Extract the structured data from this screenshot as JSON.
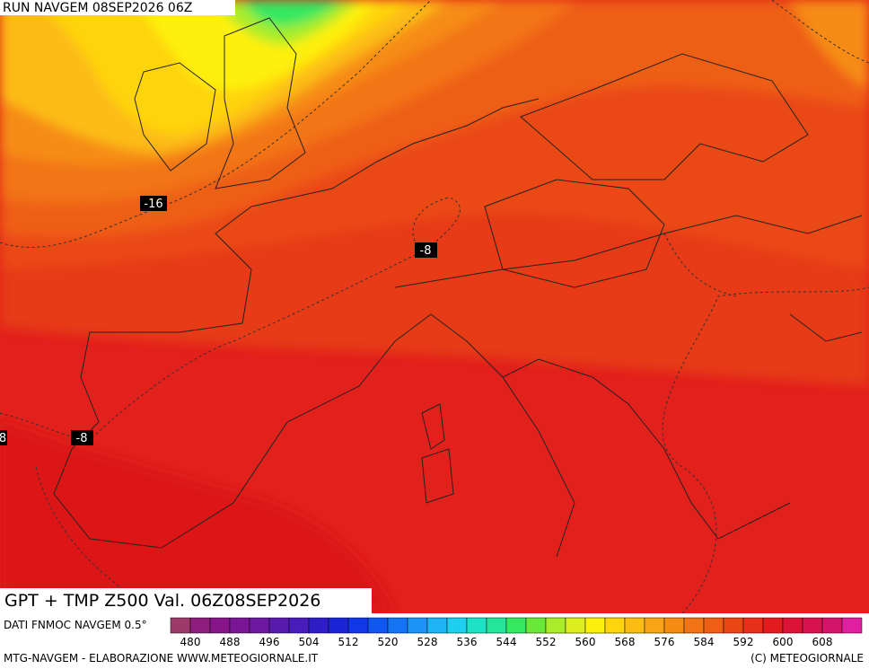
{
  "header": {
    "run": "RUN NAVGEM 08SEP2026 06Z"
  },
  "map": {
    "labels": [
      "-16",
      "-8",
      "-8",
      "8"
    ]
  },
  "caption": "GPT + TMP Z500 Val. 06Z08SEP2026",
  "legend": {
    "title": "DATI FNMOC NAVGEM 0.5°",
    "colors": [
      "#9c3a6a",
      "#8e1d7e",
      "#86158a",
      "#7a1696",
      "#6c18a2",
      "#5a1aae",
      "#471cba",
      "#2f1ec8",
      "#1c24d8",
      "#1038e6",
      "#1056f0",
      "#1474f4",
      "#1a94f6",
      "#1eb4f6",
      "#1ed0ee",
      "#1ee2c8",
      "#24e69a",
      "#36e860",
      "#6ae83a",
      "#a8ec2a",
      "#dcee1e",
      "#fef00e",
      "#fed40e",
      "#fcbc12",
      "#f9a414",
      "#f68c14",
      "#f27414",
      "#ee5e14",
      "#ea4614",
      "#e6301a",
      "#e21c1e",
      "#dc1236",
      "#d8124e",
      "#d4146a",
      "#e01ea0"
    ],
    "ticks": [
      "480",
      "488",
      "496",
      "504",
      "512",
      "520",
      "528",
      "536",
      "544",
      "552",
      "560",
      "568",
      "576",
      "584",
      "592",
      "600",
      "608"
    ]
  },
  "footer": {
    "left": "MTG-NAVGEM - ELABORAZIONE WWW.METEOGIORNALE.IT",
    "right": "(C) METEOGIORNALE"
  }
}
